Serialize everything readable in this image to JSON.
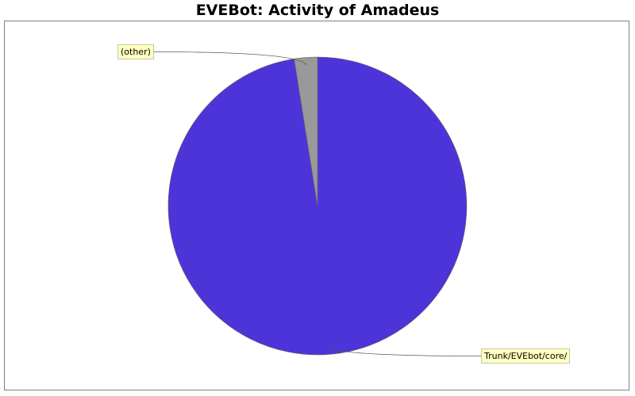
{
  "chart_data": {
    "type": "pie",
    "title": "EVEBot: Activity of Amadeus",
    "slices": [
      {
        "label": "Trunk/EVEbot/core/",
        "value": 97.5,
        "color": "#4d34d8"
      },
      {
        "label": "(other)",
        "value": 2.5,
        "color": "#999999"
      }
    ],
    "legend": "none",
    "labels_style": "callout"
  }
}
